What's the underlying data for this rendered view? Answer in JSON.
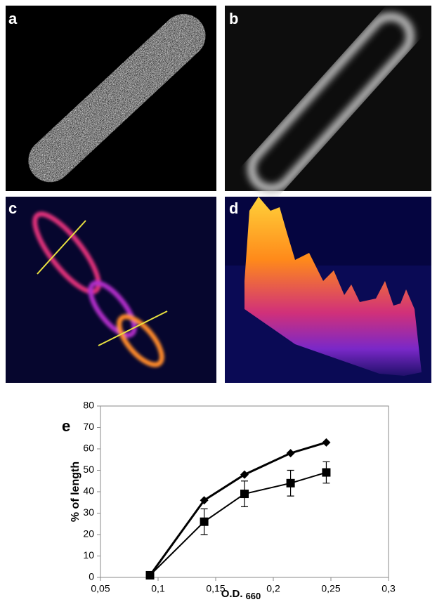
{
  "panel_labels": [
    "a",
    "b",
    "c",
    "d"
  ],
  "chart_data": {
    "type": "line",
    "panel_label": "e",
    "y_label": "% of length",
    "x_label": "O.D.",
    "x_label_subscript": "660",
    "x": [
      0.093,
      0.14,
      0.175,
      0.215,
      0.246
    ],
    "series": [
      {
        "color": "#000000",
        "marker": "diamond",
        "values": [
          1,
          36,
          48,
          58,
          63
        ]
      },
      {
        "color": "#000000",
        "marker": "square",
        "values": [
          1,
          26,
          39,
          44,
          49
        ],
        "errors": [
          0,
          6,
          6,
          6,
          5
        ]
      }
    ],
    "xlim": [
      0.05,
      0.3
    ],
    "xticks": [
      {
        "value": 0.05,
        "label": "0,05"
      },
      {
        "value": 0.1,
        "label": "0,1"
      },
      {
        "value": 0.15,
        "label": "0,15"
      },
      {
        "value": 0.2,
        "label": "0,2"
      },
      {
        "value": 0.25,
        "label": "0,25"
      },
      {
        "value": 0.3,
        "label": "0,3"
      }
    ],
    "ylim": [
      0,
      80
    ],
    "yticks": [
      0,
      10,
      20,
      30,
      40,
      50,
      60,
      70,
      80
    ]
  }
}
